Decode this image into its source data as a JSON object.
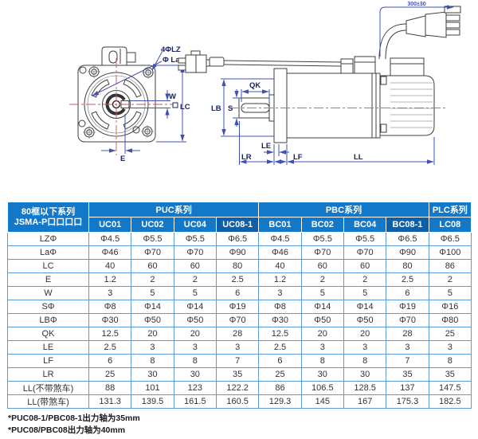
{
  "drawing": {
    "labels": {
      "bolt_holes": "4ΦLZ",
      "flange_pilot": "Φ La",
      "key_width": "W",
      "frame_size": "LC",
      "key_offset": "E",
      "key_length": "QK",
      "shaft_dia": "S",
      "pilot_dia": "LB",
      "le": "LE",
      "lr": "LR",
      "lf": "LF",
      "ll": "LL",
      "cable_length": "300±30"
    }
  },
  "table": {
    "corner": {
      "line1": "80框以下系列",
      "line2": "JSMA-P口口口口"
    },
    "groups": [
      {
        "label": "PUC系列",
        "span": 4
      },
      {
        "label": "PBC系列",
        "span": 4
      },
      {
        "label": "PLC系列",
        "span": 1
      }
    ],
    "columns": [
      "UC01",
      "UC02",
      "UC04",
      "UC08-1",
      "BC01",
      "BC02",
      "BC04",
      "BC08-1",
      "LC08"
    ],
    "highlight_columns": [
      "UC08-1",
      "BC08-1"
    ],
    "rows": [
      [
        "LZΦ",
        "Φ4.5",
        "Φ5.5",
        "Φ5.5",
        "Φ6.5",
        "Φ4.5",
        "Φ5.5",
        "Φ5.5",
        "Φ6.5",
        "Φ6.5"
      ],
      [
        "LaΦ",
        "Φ46",
        "Φ70",
        "Φ70",
        "Φ90",
        "Φ46",
        "Φ70",
        "Φ70",
        "Φ90",
        "Φ100"
      ],
      [
        "LC",
        "40",
        "60",
        "60",
        "80",
        "40",
        "60",
        "60",
        "80",
        "86"
      ],
      [
        "E",
        "1.2",
        "2",
        "2",
        "2.5",
        "1.2",
        "2",
        "2",
        "2.5",
        "2"
      ],
      [
        "W",
        "3",
        "5",
        "5",
        "6",
        "3",
        "5",
        "5",
        "6",
        "5"
      ],
      [
        "SΦ",
        "Φ8",
        "Φ14",
        "Φ14",
        "Φ19",
        "Φ8",
        "Φ14",
        "Φ14",
        "Φ19",
        "Φ16"
      ],
      [
        "LBΦ",
        "Φ30",
        "Φ50",
        "Φ50",
        "Φ70",
        "Φ30",
        "Φ50",
        "Φ50",
        "Φ70",
        "Φ80"
      ],
      [
        "QK",
        "12.5",
        "20",
        "20",
        "28",
        "12.5",
        "20",
        "20",
        "28",
        "25"
      ],
      [
        "LE",
        "2.5",
        "3",
        "3",
        "3",
        "2.5",
        "3",
        "3",
        "3",
        "3"
      ],
      [
        "LF",
        "6",
        "8",
        "8",
        "7",
        "6",
        "8",
        "8",
        "7",
        "8"
      ],
      [
        "LR",
        "25",
        "30",
        "30",
        "35",
        "25",
        "30",
        "30",
        "35",
        "35"
      ],
      [
        "LL(不带煞车)",
        "88",
        "101",
        "123",
        "122.2",
        "86",
        "106.5",
        "128.5",
        "137",
        "147.5"
      ],
      [
        "LL(带煞车)",
        "131.3",
        "139.5",
        "161.5",
        "160.5",
        "129.3",
        "145",
        "167",
        "175.3",
        "182.5"
      ]
    ]
  },
  "footnotes": [
    "*PUC08-1/PBC08-1出力轴为35mm",
    "*PUC08/PBC08出力轴为40mm"
  ],
  "colors": {
    "header_blue": "#1478c8",
    "header_dark_blue": "#0d5fa9",
    "table_border": "#5b9bd5",
    "dimension_blue": "#3f51b5",
    "centerline_red": "#cc5555"
  }
}
